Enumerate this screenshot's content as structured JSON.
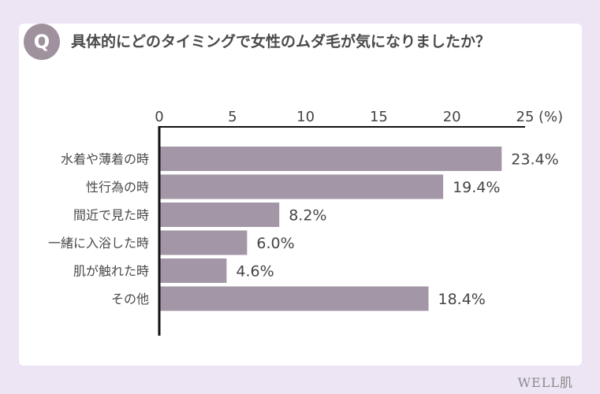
{
  "question": {
    "badge": "Q",
    "text": "具体的にどのタイミングで女性のムダ毛が気になりましたか？"
  },
  "brand": "WELL肌",
  "chart_data": {
    "type": "bar",
    "orientation": "horizontal",
    "categories": [
      "水着や薄着の時",
      "性行為の時",
      "間近で見た時",
      "一緒に入浴した時",
      "肌が触れた時",
      "その他"
    ],
    "values": [
      23.4,
      19.4,
      8.2,
      6.0,
      4.6,
      18.4
    ],
    "value_labels": [
      "23.4%",
      "19.4%",
      "8.2%",
      "6.0%",
      "4.6%",
      "18.4%"
    ],
    "xlim": [
      0,
      25
    ],
    "ticks": [
      "0",
      "5",
      "10",
      "15",
      "20",
      "25"
    ],
    "unit_label": "(%)",
    "bar_color": "#a396a6",
    "grid": false
  }
}
